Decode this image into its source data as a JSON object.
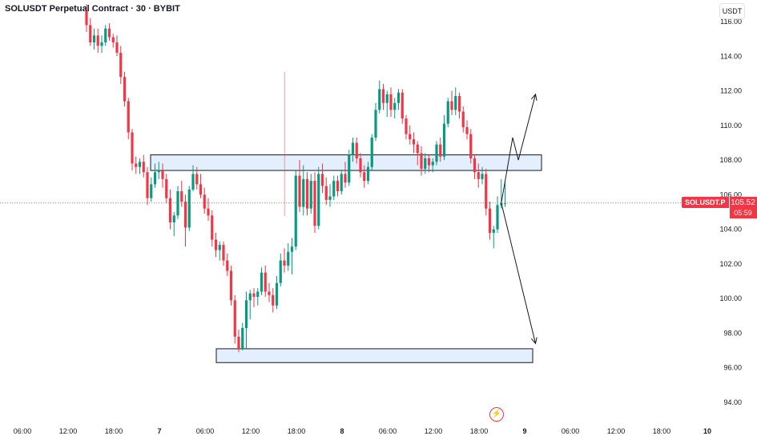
{
  "header": {
    "title": "SOLUSDT Perpetual Contract · 30 · BYBIT"
  },
  "axis": {
    "currency": "USDT"
  },
  "last_price": {
    "symbol": "SOLUSDT.P",
    "value": "105.52",
    "countdown": "05:59",
    "price": 105.52
  },
  "colors": {
    "up": "#089981",
    "down": "#f23645",
    "zone_fill": "#e3effd",
    "grid_text": "#131722"
  },
  "icons": {
    "event_marker": "flash-icon"
  },
  "chart_data": {
    "type": "candlestick",
    "y_ticks": [
      "94.00",
      "96.00",
      "98.00",
      "100.00",
      "102.00",
      "104.00",
      "106.00",
      "108.00",
      "110.00",
      "112.00",
      "114.00",
      "116.00"
    ],
    "x_ticks": [
      {
        "label": "06:00",
        "i": 0
      },
      {
        "label": "12:00",
        "i": 12
      },
      {
        "label": "18:00",
        "i": 24
      },
      {
        "label": "7",
        "i": 36
      },
      {
        "label": "06:00",
        "i": 48
      },
      {
        "label": "12:00",
        "i": 60
      },
      {
        "label": "18:00",
        "i": 72
      },
      {
        "label": "8",
        "i": 84
      },
      {
        "label": "06:00",
        "i": 96
      },
      {
        "label": "12:00",
        "i": 108
      },
      {
        "label": "18:00",
        "i": 120
      },
      {
        "label": "9",
        "i": 132
      },
      {
        "label": "06:00",
        "i": 144
      },
      {
        "label": "12:00",
        "i": 156
      },
      {
        "label": "18:00",
        "i": 168
      },
      {
        "label": "10",
        "i": 180
      }
    ],
    "ylim": [
      93.2,
      116.6
    ],
    "candles": [
      [
        116.6,
        117.0,
        115.4,
        115.8
      ],
      [
        115.8,
        116.2,
        114.6,
        114.8
      ],
      [
        114.8,
        115.6,
        114.4,
        115.2
      ],
      [
        115.2,
        115.6,
        114.2,
        114.6
      ],
      [
        114.6,
        115.2,
        114.2,
        114.8
      ],
      [
        114.8,
        115.8,
        114.6,
        115.6
      ],
      [
        115.6,
        115.9,
        114.9,
        115.1
      ],
      [
        115.1,
        115.3,
        114.5,
        114.8
      ],
      [
        114.8,
        115.2,
        114.0,
        114.2
      ],
      [
        114.2,
        114.6,
        112.4,
        112.8
      ],
      [
        112.8,
        113.1,
        111.1,
        111.4
      ],
      [
        111.4,
        111.6,
        109.2,
        109.6
      ],
      [
        109.6,
        109.8,
        107.4,
        107.8
      ],
      [
        107.8,
        108.2,
        107.2,
        107.6
      ],
      [
        107.6,
        108.1,
        107.2,
        107.9
      ],
      [
        107.9,
        108.3,
        107.0,
        107.3
      ],
      [
        107.3,
        107.6,
        105.4,
        105.8
      ],
      [
        105.8,
        107.0,
        105.6,
        106.6
      ],
      [
        106.6,
        107.8,
        106.4,
        107.3
      ],
      [
        107.3,
        107.9,
        106.9,
        107.4
      ],
      [
        107.4,
        107.8,
        106.4,
        106.9
      ],
      [
        106.9,
        107.2,
        105.5,
        105.8
      ],
      [
        105.8,
        106.3,
        104.0,
        104.4
      ],
      [
        104.4,
        105.0,
        103.6,
        104.8
      ],
      [
        104.8,
        106.5,
        104.6,
        106.2
      ],
      [
        106.2,
        106.8,
        105.3,
        105.6
      ],
      [
        105.6,
        106.0,
        103.0,
        104.1
      ],
      [
        104.1,
        106.5,
        103.9,
        106.3
      ],
      [
        106.3,
        107.7,
        106.2,
        107.2
      ],
      [
        107.2,
        107.6,
        106.3,
        106.6
      ],
      [
        106.6,
        107.2,
        105.8,
        106.0
      ],
      [
        106.0,
        106.4,
        104.9,
        105.2
      ],
      [
        105.2,
        105.8,
        104.5,
        104.8
      ],
      [
        104.8,
        105.1,
        103.0,
        103.4
      ],
      [
        103.4,
        103.8,
        102.4,
        102.8
      ],
      [
        102.8,
        103.3,
        102.2,
        103.1
      ],
      [
        103.1,
        103.3,
        101.9,
        102.2
      ],
      [
        102.2,
        102.6,
        101.3,
        101.6
      ],
      [
        101.6,
        101.9,
        99.6,
        99.9
      ],
      [
        99.9,
        100.2,
        97.4,
        97.8
      ],
      [
        97.8,
        98.2,
        96.9,
        97.1
      ],
      [
        97.1,
        98.6,
        97.0,
        98.3
      ],
      [
        98.3,
        100.4,
        97.1,
        99.9
      ],
      [
        99.9,
        100.5,
        98.8,
        100.3
      ],
      [
        100.3,
        100.6,
        99.5,
        100.1
      ],
      [
        100.1,
        100.6,
        99.6,
        100.4
      ],
      [
        100.4,
        101.8,
        100.2,
        101.5
      ],
      [
        101.5,
        101.9,
        100.1,
        100.4
      ],
      [
        100.4,
        100.9,
        99.8,
        100.2
      ],
      [
        100.2,
        100.6,
        99.2,
        99.6
      ],
      [
        99.6,
        101.3,
        99.4,
        100.9
      ],
      [
        100.9,
        102.6,
        100.7,
        102.2
      ],
      [
        102.2,
        102.9,
        101.5,
        101.9
      ],
      [
        101.9,
        103.2,
        101.6,
        102.7
      ],
      [
        102.7,
        103.5,
        101.4,
        103.0
      ],
      [
        103.0,
        107.4,
        102.8,
        107.1
      ],
      [
        107.1,
        108.0,
        105.0,
        105.3
      ],
      [
        105.3,
        107.7,
        104.8,
        106.9
      ],
      [
        106.9,
        107.3,
        104.8,
        105.2
      ],
      [
        105.2,
        107.2,
        104.9,
        106.8
      ],
      [
        106.8,
        107.3,
        103.8,
        104.2
      ],
      [
        104.2,
        107.6,
        104.0,
        107.2
      ],
      [
        107.2,
        107.8,
        106.1,
        106.5
      ],
      [
        106.5,
        107.0,
        105.4,
        105.7
      ],
      [
        105.7,
        106.6,
        105.3,
        105.9
      ],
      [
        105.9,
        107.1,
        105.7,
        106.8
      ],
      [
        106.8,
        107.1,
        105.9,
        106.2
      ],
      [
        106.2,
        107.4,
        106.0,
        107.2
      ],
      [
        107.2,
        107.9,
        106.4,
        106.7
      ],
      [
        106.7,
        108.6,
        106.5,
        108.3
      ],
      [
        108.3,
        109.3,
        107.9,
        109.0
      ],
      [
        109.0,
        109.3,
        107.8,
        108.1
      ],
      [
        108.1,
        108.4,
        107.0,
        107.3
      ],
      [
        107.3,
        107.7,
        106.4,
        106.8
      ],
      [
        106.8,
        107.9,
        106.6,
        107.6
      ],
      [
        107.6,
        109.5,
        107.4,
        109.3
      ],
      [
        109.3,
        111.3,
        109.1,
        110.9
      ],
      [
        110.9,
        112.6,
        110.7,
        112.1
      ],
      [
        112.1,
        112.4,
        110.9,
        111.3
      ],
      [
        111.3,
        112.0,
        110.5,
        111.8
      ],
      [
        111.8,
        112.2,
        110.5,
        110.9
      ],
      [
        110.9,
        111.6,
        110.4,
        111.3
      ],
      [
        111.3,
        112.1,
        110.9,
        111.9
      ],
      [
        111.9,
        112.1,
        110.1,
        110.4
      ],
      [
        110.4,
        110.6,
        109.2,
        109.5
      ],
      [
        109.5,
        110.0,
        108.9,
        109.2
      ],
      [
        109.2,
        109.6,
        108.4,
        108.9
      ],
      [
        108.9,
        109.1,
        107.7,
        108.4
      ],
      [
        108.4,
        108.8,
        107.1,
        107.5
      ],
      [
        107.5,
        108.4,
        107.2,
        108.1
      ],
      [
        108.1,
        108.3,
        107.3,
        107.7
      ],
      [
        107.7,
        108.1,
        107.3,
        107.9
      ],
      [
        107.9,
        109.1,
        107.7,
        108.9
      ],
      [
        108.9,
        109.3,
        107.9,
        108.2
      ],
      [
        108.2,
        110.6,
        108.0,
        110.1
      ],
      [
        110.1,
        111.6,
        109.9,
        111.4
      ],
      [
        111.4,
        112.0,
        110.6,
        110.9
      ],
      [
        110.9,
        112.2,
        110.6,
        111.7
      ],
      [
        111.7,
        111.9,
        110.4,
        110.8
      ],
      [
        110.8,
        111.1,
        109.6,
        109.9
      ],
      [
        109.9,
        110.3,
        109.2,
        109.5
      ],
      [
        109.5,
        109.8,
        107.8,
        108.1
      ],
      [
        108.1,
        108.3,
        106.9,
        107.3
      ],
      [
        107.3,
        107.8,
        106.4,
        106.9
      ],
      [
        106.9,
        107.6,
        106.6,
        107.2
      ],
      [
        107.2,
        107.5,
        104.8,
        105.2
      ],
      [
        105.2,
        105.6,
        103.4,
        103.8
      ],
      [
        103.8,
        104.2,
        102.9,
        104.0
      ],
      [
        104.0,
        105.9,
        103.8,
        105.4
      ],
      [
        105.4,
        106.9,
        105.2,
        105.5
      ],
      [
        105.5,
        106.8,
        105.3,
        105.52
      ]
    ],
    "zones": [
      {
        "low": 107.4,
        "high": 108.3
      },
      {
        "low": 96.3,
        "high": 97.1
      }
    ],
    "current_price": 105.52,
    "crosshair_index": 55,
    "projection_up": [
      [
        109,
        105.52
      ],
      [
        112,
        109.3
      ],
      [
        113.5,
        108.0
      ],
      [
        118,
        111.8
      ]
    ],
    "projection_down": [
      [
        109,
        105.52
      ],
      [
        118,
        97.4
      ]
    ]
  }
}
